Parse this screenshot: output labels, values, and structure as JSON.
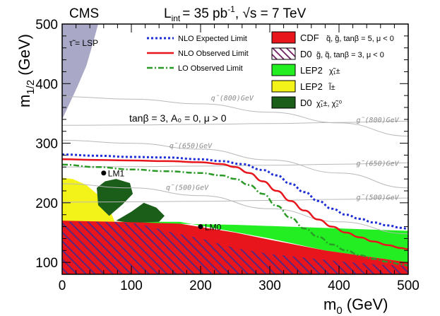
{
  "chart_data": {
    "type": "line",
    "header": {
      "experiment": "CMS",
      "lumi_label": "L",
      "lumi_sub": "int",
      "lumi_value": "= 35 pb",
      "lumi_exp": "-1",
      "energy": ", √s = 7 TeV"
    },
    "xlabel": {
      "main": "m",
      "sub": "0",
      "unit": " (GeV)"
    },
    "ylabel": {
      "main": "m",
      "sub": "1/2",
      "unit": " (GeV)"
    },
    "xlim": [
      0,
      500
    ],
    "ylim": [
      80,
      500
    ],
    "xticks": [
      0,
      100,
      200,
      300,
      400,
      500
    ],
    "yticks": [
      100,
      200,
      300,
      400,
      500
    ],
    "tick_labels_x": [
      "0",
      "100",
      "200",
      "300",
      "400",
      "500"
    ],
    "tick_labels_y": [
      "100",
      "200",
      "300",
      "400",
      "500"
    ],
    "series": [
      {
        "name": "NLO Expected Limit",
        "color": "#1f2fd6",
        "style": "dotted",
        "x": [
          0,
          50,
          100,
          150,
          200,
          230,
          260,
          290,
          310,
          330,
          350,
          370,
          390,
          410,
          430,
          450,
          470,
          490,
          500
        ],
        "y": [
          281,
          279,
          277,
          276,
          273,
          270,
          265,
          255,
          246,
          232,
          218,
          203,
          190,
          180,
          173,
          167,
          162,
          158,
          156
        ]
      },
      {
        "name": "NLO Observed Limit",
        "color": "#e8161c",
        "style": "solid",
        "x": [
          0,
          50,
          100,
          150,
          200,
          230,
          250,
          270,
          290,
          310,
          330,
          350,
          370,
          390,
          410,
          430,
          450,
          470,
          490,
          500
        ],
        "y": [
          273,
          272,
          271,
          270,
          268,
          265,
          260,
          250,
          236,
          220,
          203,
          187,
          172,
          160,
          150,
          142,
          135,
          129,
          124,
          122
        ]
      },
      {
        "name": "LO Observed Limit",
        "color": "#2a9a27",
        "style": "dashdot",
        "x": [
          0,
          50,
          100,
          150,
          200,
          230,
          250,
          270,
          290,
          310,
          330,
          350,
          370,
          390,
          410,
          430,
          450,
          470,
          490,
          500
        ],
        "y": [
          264,
          260,
          256,
          253,
          250,
          246,
          240,
          230,
          215,
          195,
          175,
          157,
          143,
          130,
          120,
          112,
          106,
          101,
          97,
          95
        ]
      }
    ],
    "regions": [
      {
        "name": "CDF",
        "legend_label": "CDF",
        "legend_detail": "q̃, g̃, tanβ = 5, μ < 0",
        "color": "#e8161c",
        "style": "fill"
      },
      {
        "name": "D0",
        "legend_label": "D0",
        "legend_detail": "g̃, q̃, tanβ = 3, μ < 0",
        "color": "#6b1a5e",
        "style": "hatch"
      },
      {
        "name": "LEP2 chargino",
        "legend_label": "LEP2",
        "legend_detail": "χ̃₁±",
        "color": "#22ee22",
        "style": "fill"
      },
      {
        "name": "LEP2 slepton",
        "legend_label": "LEP2",
        "legend_detail": "l̃±",
        "color": "#f3f31a",
        "style": "fill"
      },
      {
        "name": "D0 chargino neutralino",
        "legend_label": "D0",
        "legend_detail": "χ̃₁±, χ̃₂⁰",
        "color": "#1a5e1a",
        "style": "fill"
      }
    ],
    "stau_lsp": {
      "label": "τ̃ = LSP",
      "color": "#a9a8c6"
    },
    "squark_contours": [
      {
        "label": "q̃(500)GeV",
        "x": [
          0,
          100,
          200,
          300,
          400,
          500
        ],
        "y": [
          232,
          225,
          212,
          190,
          168,
          148
        ]
      },
      {
        "label": "q̃(650)GeV",
        "x": [
          0,
          100,
          200,
          300,
          400,
          500
        ],
        "y": [
          305,
          300,
          290,
          272,
          250,
          225
        ]
      },
      {
        "label": "q̃(800)GeV",
        "x": [
          0,
          100,
          200,
          300,
          400,
          500
        ],
        "y": [
          378,
          374,
          366,
          352,
          334,
          312
        ]
      }
    ],
    "gluino_contours": [
      {
        "label": "g̃(500)GeV",
        "y": 201
      },
      {
        "label": "g̃(650)GeV",
        "y": 260
      },
      {
        "label": "g̃(800)GeV",
        "y": 330
      }
    ],
    "benchmarks": [
      {
        "name": "LM1",
        "x": 60,
        "y": 250
      },
      {
        "name": "LM0",
        "x": 200,
        "y": 160
      }
    ],
    "annotation": "tanβ = 3, A₀ = 0, μ > 0",
    "legend_position": "top-right"
  }
}
